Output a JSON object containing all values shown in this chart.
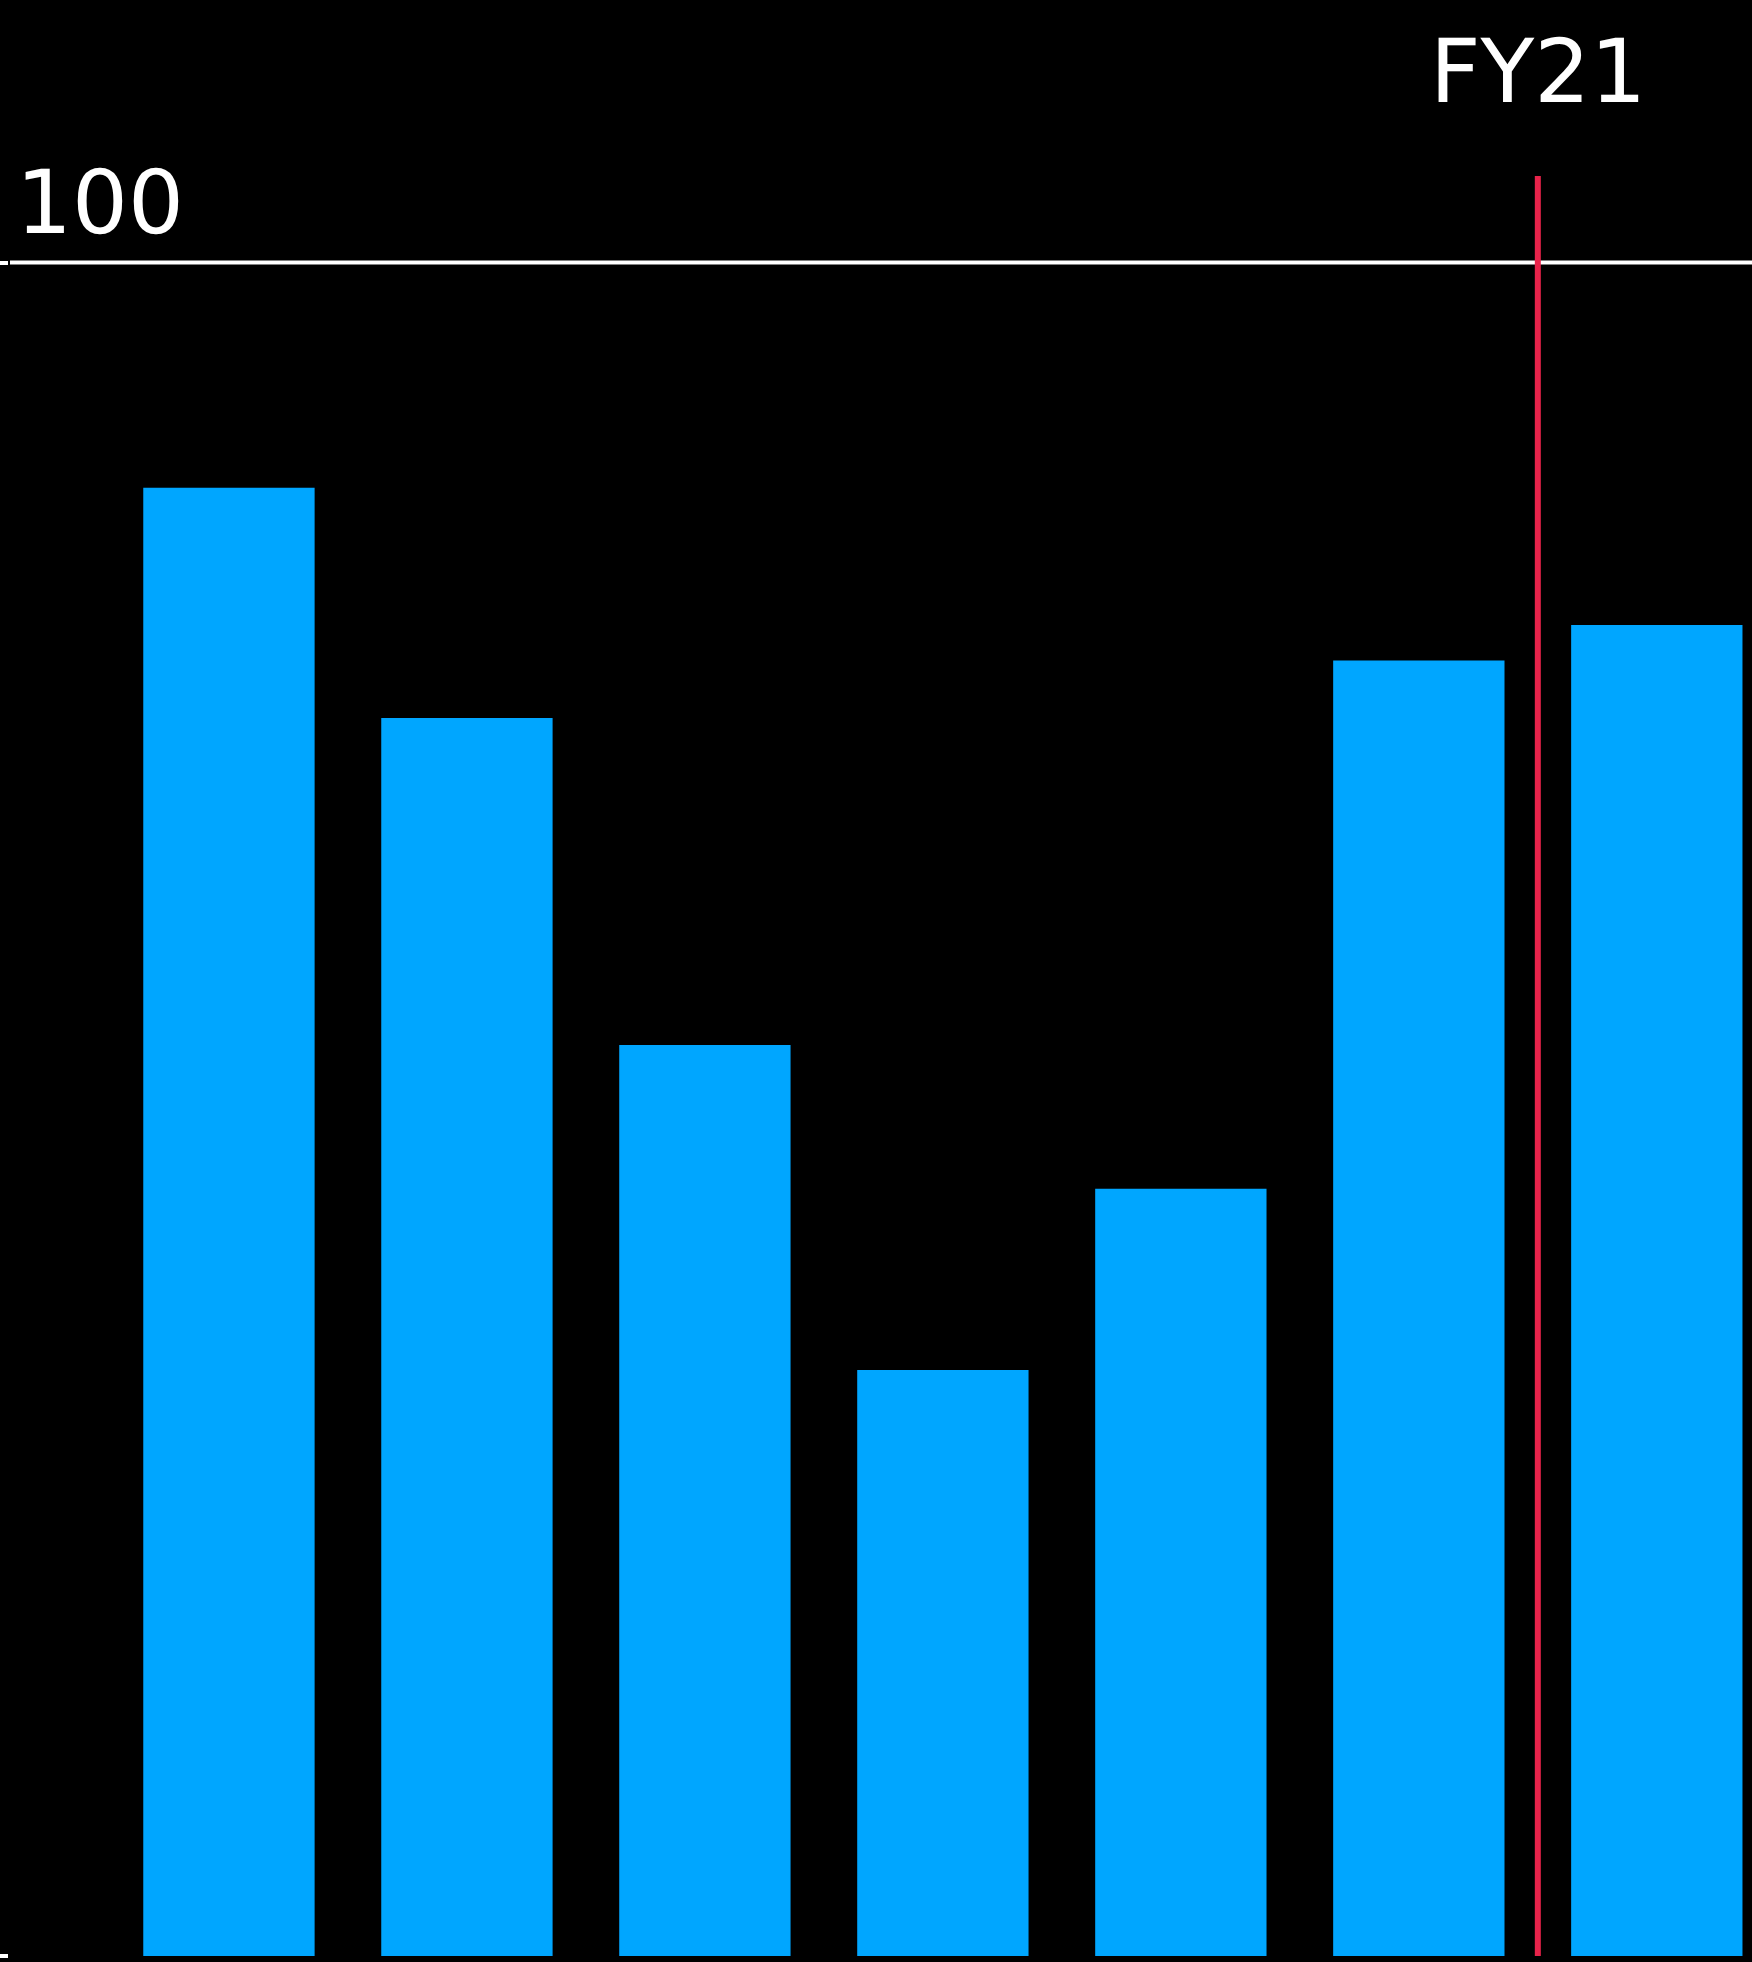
{
  "chart_data": {
    "type": "bar",
    "categories": [
      null,
      null,
      null,
      null,
      null,
      null,
      null
    ],
    "values": [
      86.7,
      73.1,
      53.8,
      34.6,
      45.3,
      76.5,
      78.6
    ],
    "color": "#00a6ff",
    "ylim": [
      0,
      115.5
    ],
    "yticks": [
      {
        "value": 0,
        "label": null
      },
      100
    ],
    "ref_lines": [
      {
        "axis": "y",
        "value": 100,
        "color": "#ffffff"
      }
    ],
    "annotations": [
      "FY21"
    ]
  }
}
